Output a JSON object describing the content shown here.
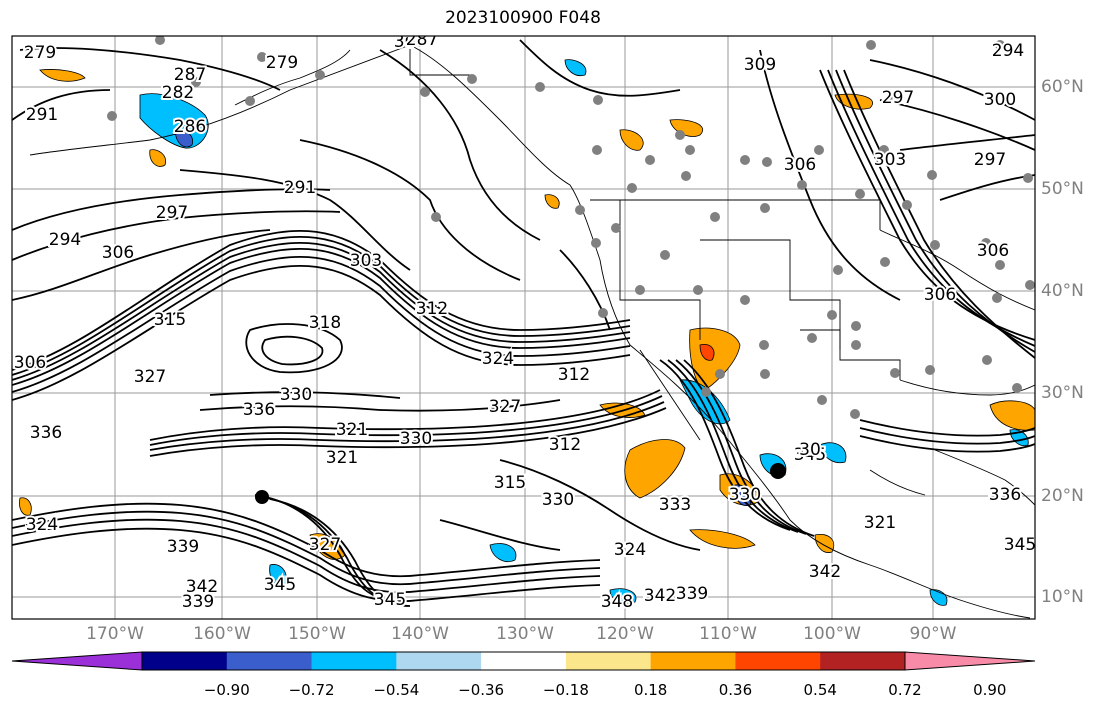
{
  "title": "2023100900 F048",
  "colors": {
    "land_border": "#000000",
    "contour": "#000000",
    "grid": "#999999",
    "station": "#808080"
  },
  "x_ticks": [
    "170°W",
    "160°W",
    "150°W",
    "140°W",
    "130°W",
    "120°W",
    "110°W",
    "100°W",
    "90°W"
  ],
  "y_ticks": [
    "60°N",
    "50°N",
    "40°N",
    "30°N",
    "20°N",
    "10°N"
  ],
  "contour_labels": [
    "279",
    "287",
    "306",
    "309",
    "279",
    "282",
    "291",
    "286",
    "291",
    "297",
    "294",
    "306",
    "303",
    "312",
    "315",
    "318",
    "324",
    "306",
    "327",
    "312",
    "330",
    "327",
    "336",
    "321",
    "336",
    "330",
    "312",
    "321",
    "330",
    "333",
    "315",
    "324",
    "327",
    "339",
    "342",
    "339",
    "345",
    "345",
    "348",
    "339",
    "342",
    "324",
    "342",
    "330",
    "345",
    "345",
    "336",
    "321",
    "297",
    "306",
    "300",
    "297",
    "303",
    "306",
    "306",
    "30",
    "287",
    "294"
  ],
  "colorbar": {
    "colors": [
      "#9b30d9",
      "#00008b",
      "#3a5fcd",
      "#00bfff",
      "#add8f0",
      "#ffffff",
      "#fce68b",
      "#ffa500",
      "#ff4500",
      "#b22222",
      "#f78ba8"
    ],
    "labels": [
      "−0.90",
      "−0.72",
      "−0.54",
      "−0.36",
      "−0.18",
      "0.18",
      "0.36",
      "0.54",
      "0.72",
      "0.90"
    ]
  }
}
